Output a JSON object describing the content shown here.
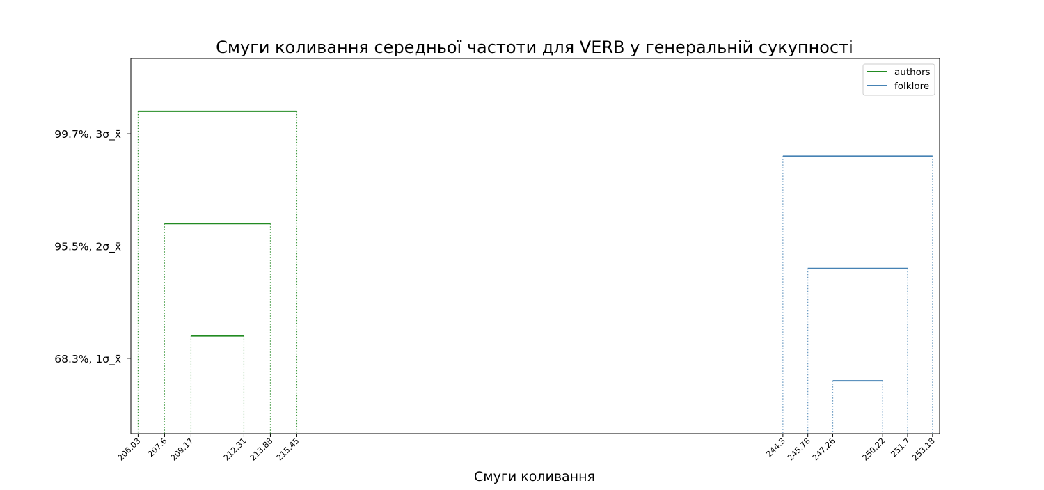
{
  "chart_data": {
    "type": "interval",
    "title": "Смуги коливання середньої частоти для VERB у генеральній сукупності",
    "xlabel": "Смуги коливання",
    "ylabel": "",
    "levels": [
      {
        "label": "68.3%,  1σ_x̄",
        "value": 1
      },
      {
        "label": "95.5%,  2σ_x̄",
        "value": 2
      },
      {
        "label": "99.7%,  3σ_x̄",
        "value": 3
      }
    ],
    "ylim": [
      0.33,
      3.67
    ],
    "xlim": [
      205.6,
      253.6
    ],
    "xticks": [
      "206.03",
      "207.6",
      "209.17",
      "212.31",
      "213.88",
      "215.45",
      "244.3",
      "245.78",
      "247.26",
      "250.22",
      "251.7",
      "253.18"
    ],
    "grid": false,
    "legend_position": "top-right",
    "series": [
      {
        "name": "authors",
        "color": "#228b22",
        "intervals": [
          {
            "level": 1,
            "y": 1.2,
            "low": 209.17,
            "high": 212.31
          },
          {
            "level": 2,
            "y": 2.2,
            "low": 207.6,
            "high": 213.88
          },
          {
            "level": 3,
            "y": 3.2,
            "low": 206.03,
            "high": 215.45
          }
        ]
      },
      {
        "name": "folklore",
        "color": "#4682b4",
        "intervals": [
          {
            "level": 1,
            "y": 0.8,
            "low": 247.26,
            "high": 250.22
          },
          {
            "level": 2,
            "y": 1.8,
            "low": 245.78,
            "high": 251.7
          },
          {
            "level": 3,
            "y": 2.8,
            "low": 244.3,
            "high": 253.18
          }
        ]
      }
    ]
  }
}
